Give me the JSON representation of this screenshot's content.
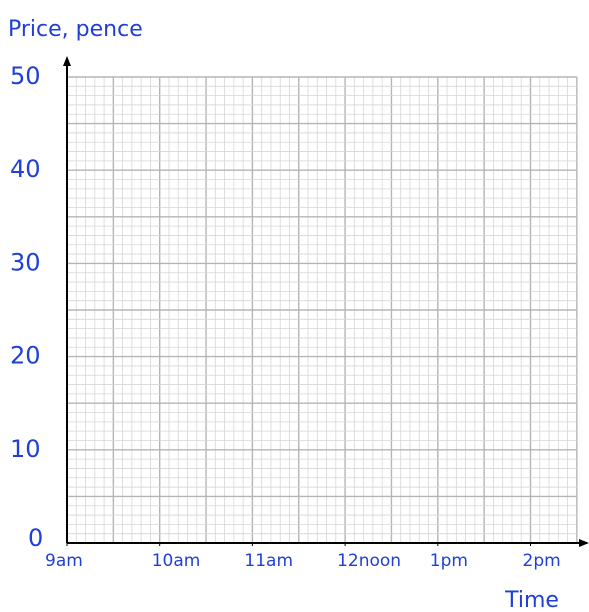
{
  "chart_data": {
    "type": "line",
    "ylabel": "Price, pence",
    "xlabel": "Time",
    "categories": [
      "9am",
      "10am",
      "11am",
      "12noon",
      "1pm",
      "2pm"
    ],
    "ylim": [
      0,
      50
    ],
    "yticks": [
      0,
      10,
      20,
      30,
      40,
      50
    ],
    "grid": true
  }
}
